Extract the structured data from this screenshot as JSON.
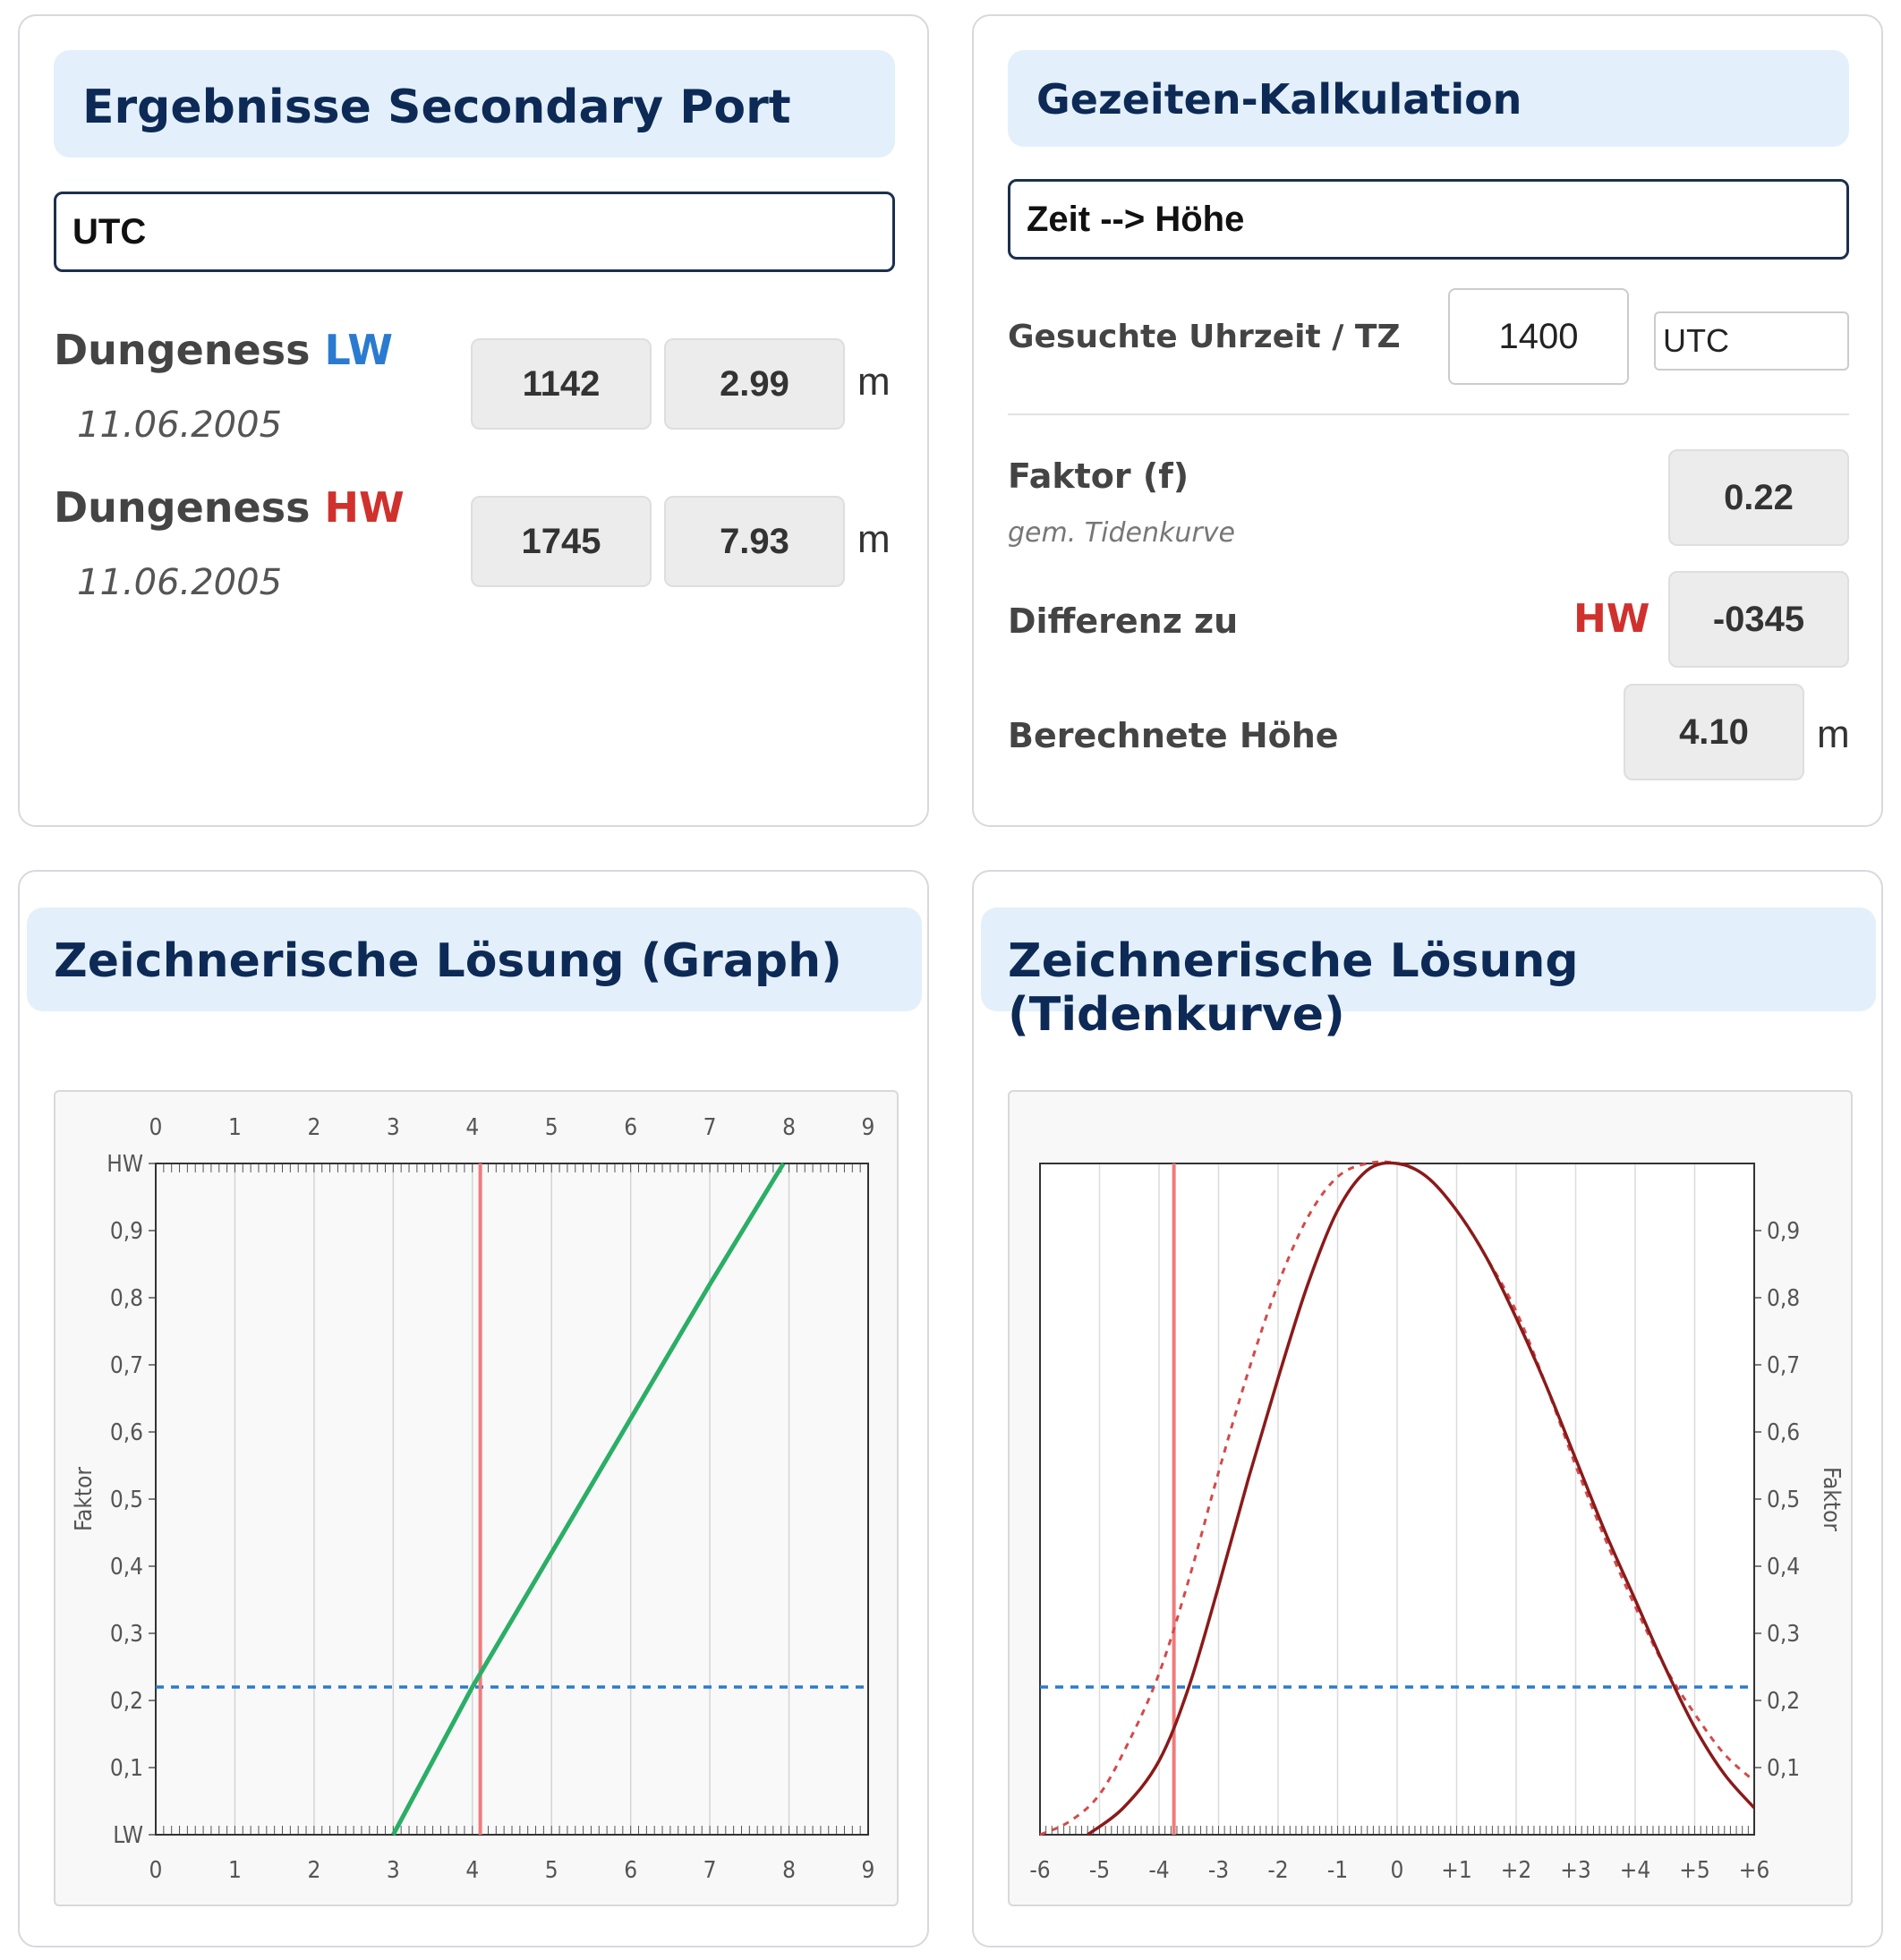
{
  "results": {
    "title": "Ergebnisse Secondary Port",
    "timezone": "UTC",
    "lw": {
      "port": "Dungeness",
      "tag": "LW",
      "date": "11.06.2005",
      "time": "1142",
      "height": "2.99",
      "unit": "m"
    },
    "hw": {
      "port": "Dungeness",
      "tag": "HW",
      "date": "11.06.2005",
      "time": "1745",
      "height": "7.93",
      "unit": "m"
    }
  },
  "calc": {
    "title": "Gezeiten-Kalkulation",
    "mode": "Zeit --> Höhe",
    "search_label": "Gesuchte Uhrzeit / TZ",
    "search_time": "1400",
    "search_tz": "UTC",
    "factor_label": "Faktor (f)",
    "factor_sub": "gem. Tidenkurve",
    "factor_value": "0.22",
    "diff_label": "Differenz zu",
    "diff_ref": "HW",
    "diff_value": "-0345",
    "height_label": "Berechnete Höhe",
    "height_value": "4.10",
    "height_unit": "m"
  },
  "graph": {
    "title": "Zeichnerische Lösung (Graph)",
    "ylabel": "Faktor",
    "y_top_label": "HW",
    "y_bottom_label": "LW"
  },
  "tide": {
    "title": "Zeichnerische Lösung (Tidenkurve)",
    "ylabel": "Faktor"
  },
  "colors": {
    "lw": "#2a7bd0",
    "hw": "#d0312d",
    "line_green": "#2bae66",
    "marker_red": "#f07b7b",
    "factor_blue": "#2a7bd0",
    "curve": "#8b1a1a"
  },
  "chart_data": [
    {
      "type": "line",
      "x": [
        3,
        4,
        5,
        6,
        7,
        7.93
      ],
      "y": [
        0,
        0.22,
        0.42,
        0.62,
        0.82,
        1.0
      ],
      "xlim": [
        0,
        9
      ],
      "ylim": [
        0,
        1
      ],
      "x_ticks": [
        "0",
        "1",
        "2",
        "3",
        "4",
        "5",
        "6",
        "7",
        "8",
        "9"
      ],
      "y_ticks": [
        "LW",
        "0,1",
        "0,2",
        "0,3",
        "0,4",
        "0,5",
        "0,6",
        "0,7",
        "0,8",
        "0,9",
        "HW"
      ],
      "ylabel": "Faktor",
      "marker_x": 4.1,
      "marker_y": 0.22,
      "grid": true
    },
    {
      "type": "line",
      "xlim": [
        -6,
        6
      ],
      "ylim": [
        0,
        1
      ],
      "x_ticks": [
        "-6",
        "-5",
        "-4",
        "-3",
        "-2",
        "-1",
        "0",
        "+1",
        "+2",
        "+3",
        "+4",
        "+5",
        "+6"
      ],
      "y_ticks": [
        "0,1",
        "0,2",
        "0,3",
        "0,4",
        "0,5",
        "0,6",
        "0,7",
        "0,8",
        "0,9"
      ],
      "ylabel": "Faktor",
      "marker_x": -3.75,
      "marker_y": 0.22,
      "grid": true,
      "series": [
        {
          "x": [
            -5.2,
            -4.6,
            -4,
            -3.5,
            -3,
            -2.5,
            -2,
            -1.5,
            -1,
            -0.5,
            0,
            0.5,
            1,
            1.5,
            2,
            2.5,
            3,
            3.5,
            4,
            4.5,
            5,
            5.5,
            6
          ],
          "y": [
            0,
            0.04,
            0.11,
            0.22,
            0.37,
            0.53,
            0.68,
            0.82,
            0.93,
            0.99,
            1,
            0.98,
            0.93,
            0.86,
            0.77,
            0.67,
            0.56,
            0.45,
            0.35,
            0.25,
            0.16,
            0.09,
            0.04
          ]
        },
        {
          "x": [
            -6,
            -5.5,
            -5,
            -4.5,
            -4,
            -3.5,
            -3,
            -2.5,
            -2,
            -1.5,
            -1,
            -0.5,
            0,
            0.5,
            1,
            1.5,
            2,
            2.5,
            3,
            3.5,
            4,
            4.5,
            5,
            5.5,
            6
          ],
          "y": [
            0,
            0.02,
            0.06,
            0.14,
            0.24,
            0.38,
            0.54,
            0.69,
            0.82,
            0.92,
            0.98,
            1,
            1,
            0.98,
            0.93,
            0.86,
            0.78,
            0.67,
            0.55,
            0.44,
            0.34,
            0.25,
            0.18,
            0.12,
            0.08
          ]
        }
      ]
    }
  ]
}
